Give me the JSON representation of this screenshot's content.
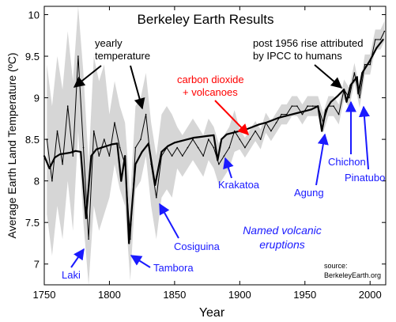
{
  "chart_data": {
    "type": "line",
    "title": "Berkeley Earth Results",
    "xlabel": "Year",
    "ylabel": "Average Earth Land Temperature (ºC)",
    "xlim": [
      1750,
      2012
    ],
    "ylim": [
      6.75,
      10.1
    ],
    "xticks": [
      "1750",
      "1800",
      "1850",
      "1900",
      "1950",
      "2000"
    ],
    "yticks": [
      "7",
      "7.5",
      "8",
      "8.5",
      "9",
      "9.5",
      "10"
    ],
    "grid": false,
    "legend": "none",
    "series": [
      {
        "name": "yearly temperature",
        "color": "#000000",
        "x": [
          1752,
          1756,
          1760,
          1764,
          1768,
          1772,
          1776,
          1780,
          1784,
          1788,
          1792,
          1796,
          1800,
          1804,
          1808,
          1812,
          1816,
          1820,
          1824,
          1828,
          1832,
          1836,
          1840,
          1844,
          1848,
          1852,
          1856,
          1860,
          1864,
          1868,
          1872,
          1876,
          1880,
          1884,
          1888,
          1892,
          1896,
          1900,
          1904,
          1908,
          1912,
          1916,
          1920,
          1924,
          1928,
          1932,
          1936,
          1940,
          1944,
          1948,
          1952,
          1956,
          1960,
          1964,
          1968,
          1972,
          1976,
          1980,
          1984,
          1988,
          1992,
          1996,
          2000,
          2004,
          2008,
          2011
        ],
        "y": [
          8.5,
          8.0,
          8.6,
          8.2,
          8.9,
          8.3,
          9.5,
          8.4,
          7.3,
          8.6,
          8.3,
          8.5,
          8.3,
          8.7,
          8.4,
          8.2,
          7.3,
          8.4,
          8.5,
          8.8,
          8.2,
          7.8,
          8.3,
          8.4,
          8.3,
          8.4,
          8.3,
          8.4,
          8.5,
          8.4,
          8.3,
          8.5,
          8.4,
          8.2,
          8.3,
          8.4,
          8.6,
          8.5,
          8.4,
          8.5,
          8.6,
          8.5,
          8.7,
          8.6,
          8.7,
          8.8,
          8.8,
          8.9,
          8.9,
          8.8,
          8.9,
          8.9,
          8.9,
          8.7,
          8.9,
          8.9,
          8.8,
          9.1,
          9.0,
          9.3,
          9.0,
          9.4,
          9.4,
          9.7,
          9.7,
          9.8
        ]
      },
      {
        "name": "carbon dioxide + volcanoes",
        "color": "#000000",
        "x": [
          1750,
          1754,
          1758,
          1762,
          1766,
          1770,
          1774,
          1778,
          1782,
          1786,
          1790,
          1794,
          1798,
          1802,
          1806,
          1809,
          1812,
          1815,
          1820,
          1825,
          1830,
          1835,
          1840,
          1845,
          1850,
          1855,
          1860,
          1865,
          1870,
          1875,
          1880,
          1883,
          1886,
          1890,
          1895,
          1900,
          1905,
          1910,
          1915,
          1920,
          1925,
          1930,
          1935,
          1940,
          1945,
          1950,
          1955,
          1960,
          1963,
          1966,
          1970,
          1975,
          1980,
          1982,
          1985,
          1990,
          1991,
          1994,
          2000,
          2005,
          2010
        ],
        "y": [
          8.3,
          8.15,
          8.28,
          8.32,
          8.33,
          8.34,
          8.36,
          8.35,
          7.55,
          8.3,
          8.38,
          8.4,
          8.42,
          8.44,
          8.45,
          8.0,
          8.3,
          7.25,
          8.2,
          8.35,
          8.45,
          7.95,
          8.35,
          8.42,
          8.46,
          8.48,
          8.5,
          8.52,
          8.53,
          8.54,
          8.55,
          8.25,
          8.5,
          8.56,
          8.58,
          8.6,
          8.62,
          8.65,
          8.68,
          8.7,
          8.73,
          8.76,
          8.78,
          8.8,
          8.82,
          8.84,
          8.86,
          8.9,
          8.6,
          8.85,
          8.95,
          9.02,
          9.1,
          8.95,
          9.15,
          9.25,
          9.05,
          9.3,
          9.45,
          9.6,
          9.7
        ]
      }
    ],
    "annotations": [
      {
        "text": "yearly",
        "color": "#000000"
      },
      {
        "text": "temperature",
        "color": "#000000"
      },
      {
        "text": "post 1956 rise attributed",
        "color": "#000000"
      },
      {
        "text": "by IPCC to humans",
        "color": "#000000"
      },
      {
        "text": "carbon dioxide",
        "color": "#ff0000"
      },
      {
        "text": "+ volcanoes",
        "color": "#ff0000"
      },
      {
        "text": "Krakatoa",
        "color": "#1a1aff"
      },
      {
        "text": "Agung",
        "color": "#1a1aff"
      },
      {
        "text": "Chichon",
        "color": "#1a1aff"
      },
      {
        "text": "Pinatubo",
        "color": "#1a1aff"
      },
      {
        "text": "Cosiguina",
        "color": "#1a1aff"
      },
      {
        "text": "Tambora",
        "color": "#1a1aff"
      },
      {
        "text": "Laki",
        "color": "#1a1aff"
      },
      {
        "text": "Named volcanic",
        "color": "#1a1aff"
      },
      {
        "text": "eruptions",
        "color": "#1a1aff"
      },
      {
        "text": "source:",
        "color": "#000000"
      },
      {
        "text": "BerkeleyEarth.org",
        "color": "#000000"
      }
    ],
    "uncertainty_band_color": "#c8c8c8",
    "volcano_color": "#1a1aff",
    "arrow_color": "#000000",
    "co2_arrow_color": "#ff0000"
  }
}
